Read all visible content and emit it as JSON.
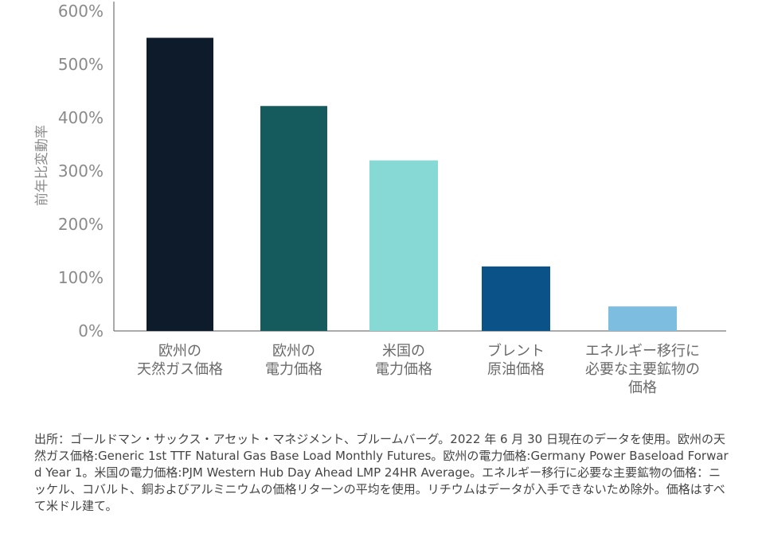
{
  "chart_data": {
    "type": "bar",
    "ylabel": "前年比変動率",
    "ylim": [
      0,
      600
    ],
    "yticks": [
      "0%",
      "100%",
      "200%",
      "300%",
      "400%",
      "500%",
      "600%"
    ],
    "grid": false,
    "categories": [
      [
        "欧州の",
        "天然ガス価格"
      ],
      [
        "欧州の",
        "電力価格"
      ],
      [
        "米国の",
        "電力価格"
      ],
      [
        "ブレント",
        "原油価格"
      ],
      [
        "エネルギー移行に",
        "必要な主要鉱物の",
        "価格"
      ]
    ],
    "values": [
      550,
      422,
      320,
      121,
      46
    ],
    "colors": [
      "#0e1b2a",
      "#155a5c",
      "#87d9d6",
      "#0b5289",
      "#7cbde0"
    ]
  },
  "source_note": "出所：ゴールドマン・サックス・アセット・マネジメント、ブルームバーグ。2022 年 6 月 30 日現在のデータを使用。欧州の天然ガス価格:Generic 1st TTF Natural Gas Base Load Monthly Futures。欧州の電力価格:Germany Power Baseload Forward Year 1。米国の電力価格:PJM Western Hub Day Ahead LMP 24HR Average。エネルギー移行に必要な主要鉱物の価格：ニッケル、コバルト、銅およびアルミニウムの価格リターンの平均を使用。リチウムはデータが入手できないため除外。価格はすべて米ドル建て。"
}
